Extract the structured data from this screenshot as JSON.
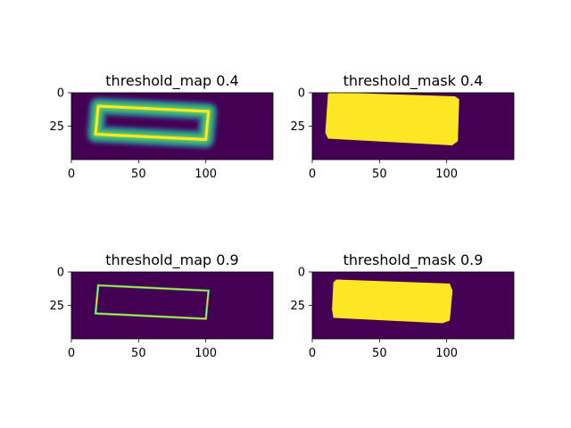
{
  "chart_data": [
    {
      "type": "heatmap",
      "title": "threshold_map 0.4",
      "x_ticks": [
        0,
        50,
        100
      ],
      "y_ticks": [
        0,
        25
      ],
      "xlim": [
        0,
        150
      ],
      "ylim": [
        0,
        50
      ],
      "y_inverted": true,
      "colormap": "viridis",
      "background_color": "#440154",
      "content": "rectangle_outline",
      "polygon": [
        [
          20,
          10
        ],
        [
          102,
          14
        ],
        [
          100,
          35
        ],
        [
          18,
          31
        ]
      ],
      "line_width": 2,
      "halo_width": 7
    },
    {
      "type": "heatmap",
      "title": "threshold_mask 0.4",
      "x_ticks": [
        0,
        50,
        100
      ],
      "y_ticks": [
        0,
        25
      ],
      "xlim": [
        0,
        150
      ],
      "ylim": [
        0,
        50
      ],
      "y_inverted": true,
      "colormap": "viridis",
      "background_color": "#440154",
      "content": "filled_region",
      "fill_color": "#fde725",
      "polygon": [
        [
          14,
          0
        ],
        [
          106,
          3
        ],
        [
          109,
          5
        ],
        [
          108,
          36
        ],
        [
          104,
          39
        ],
        [
          12,
          34
        ],
        [
          10,
          30
        ],
        [
          12,
          1
        ]
      ]
    },
    {
      "type": "heatmap",
      "title": "threshold_map 0.9",
      "x_ticks": [
        0,
        50,
        100
      ],
      "y_ticks": [
        0,
        25
      ],
      "xlim": [
        0,
        150
      ],
      "ylim": [
        0,
        50
      ],
      "y_inverted": true,
      "colormap": "viridis",
      "background_color": "#440154",
      "content": "rectangle_outline",
      "polygon": [
        [
          20,
          10
        ],
        [
          102,
          14
        ],
        [
          100,
          35
        ],
        [
          18,
          31
        ]
      ],
      "line_width": 1,
      "halo_width": 0
    },
    {
      "type": "heatmap",
      "title": "threshold_mask 0.9",
      "x_ticks": [
        0,
        50,
        100
      ],
      "y_ticks": [
        0,
        25
      ],
      "xlim": [
        0,
        150
      ],
      "ylim": [
        0,
        50
      ],
      "y_inverted": true,
      "colormap": "viridis",
      "background_color": "#440154",
      "content": "filled_region",
      "fill_color": "#fde725",
      "polygon": [
        [
          18,
          6
        ],
        [
          102,
          9
        ],
        [
          104,
          14
        ],
        [
          102,
          36
        ],
        [
          97,
          38
        ],
        [
          16,
          34
        ],
        [
          15,
          28
        ],
        [
          16,
          8
        ]
      ]
    }
  ]
}
